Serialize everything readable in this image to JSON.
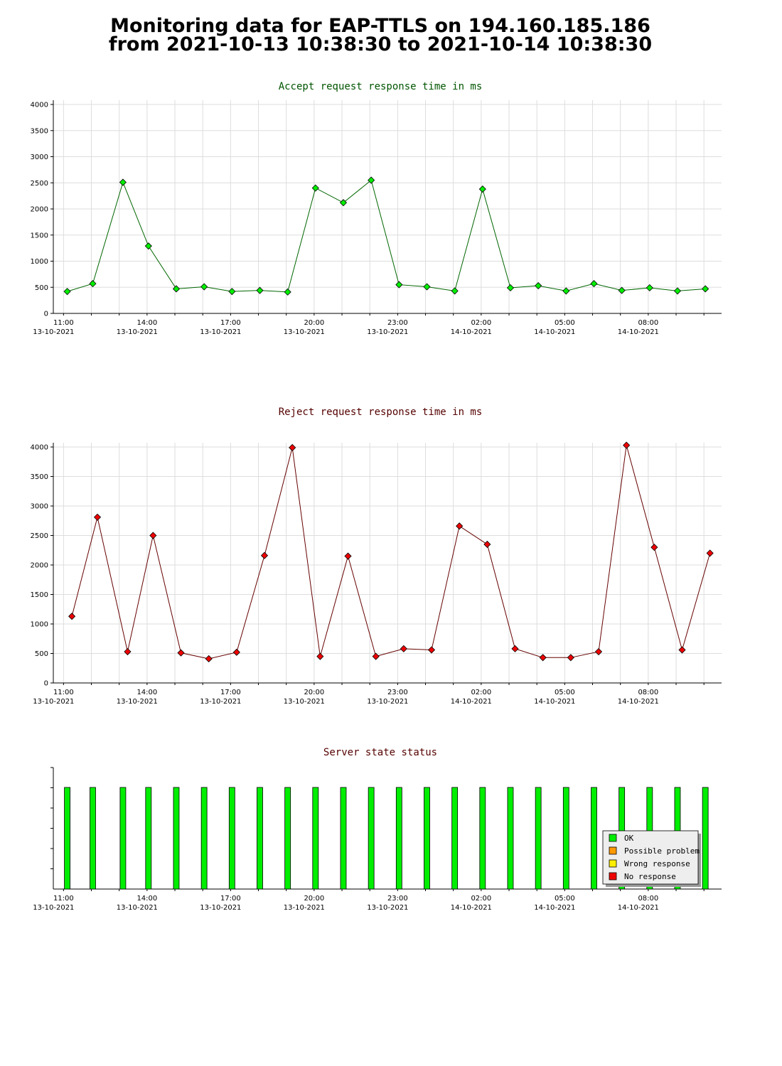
{
  "page": {
    "title_line1": "Monitoring data for EAP-TTLS on 194.160.185.186",
    "title_line2": "from 2021-10-13 10:38:30 to 2021-10-14 10:38:30"
  },
  "colors": {
    "accept_line": "#006600",
    "accept_marker": "#00ee00",
    "reject_line": "#660000",
    "reject_marker": "#ee0000",
    "accept_title": "#005500",
    "reject_title": "#550000",
    "status_ok": "#00ee00",
    "status_possible": "#ff9900",
    "status_wrong": "#ffee00",
    "status_none": "#ee0000"
  },
  "chart_data": [
    {
      "type": "line",
      "title": "Accept request response time in ms",
      "xlabel": "",
      "ylabel": "",
      "ylim": [
        0,
        4000
      ],
      "yticks": [
        0,
        500,
        1000,
        1500,
        2000,
        2500,
        3000,
        3500,
        4000
      ],
      "grid": true,
      "x_tick_labels": [
        {
          "time": "11:00",
          "date": "13-10-2021"
        },
        {
          "time": "14:00",
          "date": "13-10-2021"
        },
        {
          "time": "17:00",
          "date": "13-10-2021"
        },
        {
          "time": "20:00",
          "date": "13-10-2021"
        },
        {
          "time": "23:00",
          "date": "13-10-2021"
        },
        {
          "time": "02:00",
          "date": "14-10-2021"
        },
        {
          "time": "05:00",
          "date": "14-10-2021"
        },
        {
          "time": "08:00",
          "date": "14-10-2021"
        }
      ],
      "x": [
        "2021-10-13 11:08",
        "2021-10-13 12:03",
        "2021-10-13 13:08",
        "2021-10-13 14:03",
        "2021-10-13 15:03",
        "2021-10-13 16:03",
        "2021-10-13 17:03",
        "2021-10-13 18:03",
        "2021-10-13 19:03",
        "2021-10-13 20:03",
        "2021-10-13 21:03",
        "2021-10-13 22:03",
        "2021-10-13 23:03",
        "2021-10-14 00:03",
        "2021-10-14 01:03",
        "2021-10-14 02:03",
        "2021-10-14 03:03",
        "2021-10-14 04:03",
        "2021-10-14 05:03",
        "2021-10-14 06:03",
        "2021-10-14 07:03",
        "2021-10-14 08:03",
        "2021-10-14 09:03",
        "2021-10-14 10:03"
      ],
      "values": [
        420,
        570,
        2510,
        1290,
        470,
        510,
        420,
        440,
        410,
        2400,
        2120,
        2550,
        550,
        510,
        430,
        2380,
        490,
        530,
        430,
        570,
        440,
        490,
        430,
        470
      ]
    },
    {
      "type": "line",
      "title": "Reject request response time in ms",
      "xlabel": "",
      "ylabel": "",
      "ylim": [
        0,
        4000
      ],
      "yticks": [
        0,
        500,
        1000,
        1500,
        2000,
        2500,
        3000,
        3500,
        4000
      ],
      "grid": true,
      "x_tick_labels": [
        {
          "time": "11:00",
          "date": "13-10-2021"
        },
        {
          "time": "14:00",
          "date": "13-10-2021"
        },
        {
          "time": "17:00",
          "date": "13-10-2021"
        },
        {
          "time": "20:00",
          "date": "13-10-2021"
        },
        {
          "time": "23:00",
          "date": "13-10-2021"
        },
        {
          "time": "02:00",
          "date": "14-10-2021"
        },
        {
          "time": "05:00",
          "date": "14-10-2021"
        },
        {
          "time": "08:00",
          "date": "14-10-2021"
        }
      ],
      "x": [
        "2021-10-13 11:18",
        "2021-10-13 12:13",
        "2021-10-13 13:18",
        "2021-10-13 14:13",
        "2021-10-13 15:13",
        "2021-10-13 16:13",
        "2021-10-13 17:13",
        "2021-10-13 18:13",
        "2021-10-13 19:13",
        "2021-10-13 20:13",
        "2021-10-13 21:13",
        "2021-10-13 22:13",
        "2021-10-13 23:13",
        "2021-10-14 00:13",
        "2021-10-14 01:13",
        "2021-10-14 02:13",
        "2021-10-14 03:13",
        "2021-10-14 04:13",
        "2021-10-14 05:13",
        "2021-10-14 06:13",
        "2021-10-14 07:13",
        "2021-10-14 08:13",
        "2021-10-14 09:13",
        "2021-10-14 10:13"
      ],
      "values": [
        1130,
        2810,
        530,
        2500,
        510,
        410,
        520,
        2160,
        3990,
        450,
        2150,
        450,
        580,
        560,
        2660,
        2350,
        580,
        430,
        430,
        530,
        4030,
        2300,
        560,
        2200
      ]
    },
    {
      "type": "bar",
      "title": "Server state status",
      "xlabel": "",
      "ylabel": "",
      "x_tick_labels": [
        {
          "time": "11:00",
          "date": "13-10-2021"
        },
        {
          "time": "14:00",
          "date": "13-10-2021"
        },
        {
          "time": "17:00",
          "date": "13-10-2021"
        },
        {
          "time": "20:00",
          "date": "13-10-2021"
        },
        {
          "time": "23:00",
          "date": "13-10-2021"
        },
        {
          "time": "02:00",
          "date": "14-10-2021"
        },
        {
          "time": "05:00",
          "date": "14-10-2021"
        },
        {
          "time": "08:00",
          "date": "14-10-2021"
        }
      ],
      "x": [
        "2021-10-13 11:08",
        "2021-10-13 12:03",
        "2021-10-13 13:08",
        "2021-10-13 14:03",
        "2021-10-13 15:03",
        "2021-10-13 16:03",
        "2021-10-13 17:03",
        "2021-10-13 18:03",
        "2021-10-13 19:03",
        "2021-10-13 20:03",
        "2021-10-13 21:03",
        "2021-10-13 22:03",
        "2021-10-13 23:03",
        "2021-10-14 00:03",
        "2021-10-14 01:03",
        "2021-10-14 02:03",
        "2021-10-14 03:03",
        "2021-10-14 04:03",
        "2021-10-14 05:03",
        "2021-10-14 06:03",
        "2021-10-14 07:03",
        "2021-10-14 08:03",
        "2021-10-14 09:03",
        "2021-10-14 10:03"
      ],
      "status": [
        "OK",
        "OK",
        "OK",
        "OK",
        "OK",
        "OK",
        "OK",
        "OK",
        "OK",
        "OK",
        "OK",
        "OK",
        "OK",
        "OK",
        "OK",
        "OK",
        "OK",
        "OK",
        "OK",
        "OK",
        "OK",
        "OK",
        "OK",
        "OK"
      ],
      "legend_position": "bottom-right",
      "legend": [
        {
          "label": "OK",
          "color": "#00ee00"
        },
        {
          "label": "Possible problem",
          "color": "#ff9900"
        },
        {
          "label": "Wrong response",
          "color": "#ffee00"
        },
        {
          "label": "No response",
          "color": "#ee0000"
        }
      ]
    }
  ]
}
